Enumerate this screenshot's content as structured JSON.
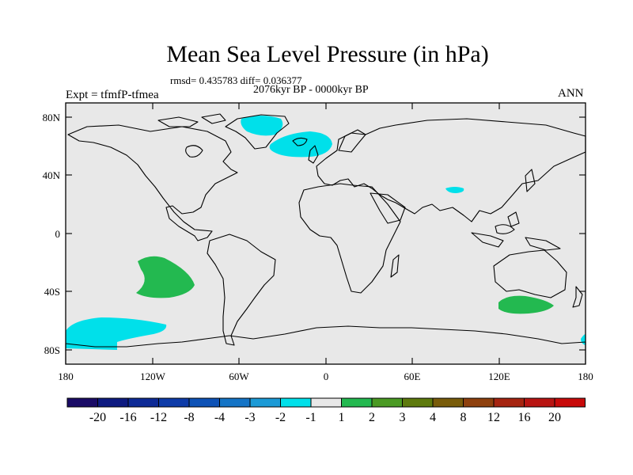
{
  "title": "Mean Sea Level Pressure (in hPa)",
  "stats": "rmsd= 0.435783 diff= 0.036377",
  "period": "2076kyr BP - 0000kyr BP",
  "experiment": "Expt = tfmfP-tfmea",
  "season": "ANN",
  "lat_ticks": [
    "80N",
    "40N",
    "0",
    "40S",
    "80S"
  ],
  "lon_ticks": [
    "180",
    "120W",
    "60W",
    "0",
    "60E",
    "120E",
    "180"
  ],
  "colorbar": {
    "labels": [
      "-20",
      "-16",
      "-12",
      "-8",
      "-4",
      "-3",
      "-2",
      "-1",
      "1",
      "2",
      "3",
      "4",
      "8",
      "12",
      "16",
      "20"
    ],
    "colors": [
      "#1a0b66",
      "#0d1a80",
      "#0d2a96",
      "#0d3ba8",
      "#0d52b6",
      "#1474c6",
      "#1b9ad6",
      "#00e0ea",
      "#e8e8e8",
      "#23b950",
      "#4a9a23",
      "#5e7a0d",
      "#795c0a",
      "#8e400d",
      "#a62410",
      "#b81412",
      "#c80a0a"
    ]
  },
  "map_colors": {
    "ocean": "#e8e8e8",
    "negative": "#00e0ea",
    "positive": "#23b950"
  }
}
